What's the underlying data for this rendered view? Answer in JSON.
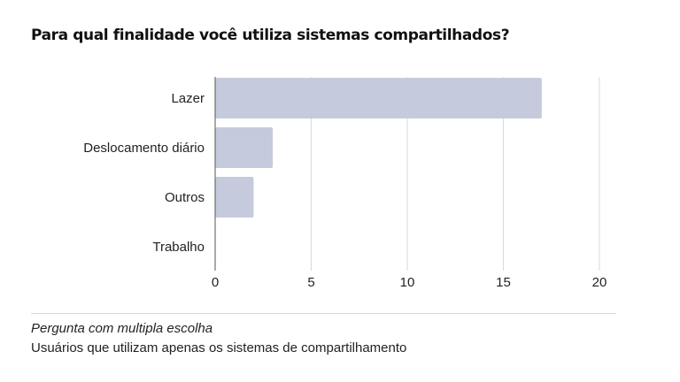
{
  "title": "Para qual finalidade você utiliza sistemas compartilhados?",
  "footer": {
    "note": "Pergunta com multipla escolha",
    "subnote": "Usuários que utilizam apenas os sistemas de compartilhamento"
  },
  "colors": {
    "bar": "#c5cbdc",
    "grid": "#d9d9d9",
    "axis": "#555555"
  },
  "chart_data": {
    "type": "bar",
    "orientation": "horizontal",
    "categories": [
      "Lazer",
      "Deslocamento diário",
      "Outros",
      "Trabalho"
    ],
    "values": [
      17,
      3,
      2,
      0
    ],
    "xlim": [
      0,
      20
    ],
    "xticks": [
      0,
      5,
      10,
      15,
      20
    ],
    "grid": true,
    "title": "Para qual finalidade você utiliza sistemas compartilhados?"
  }
}
